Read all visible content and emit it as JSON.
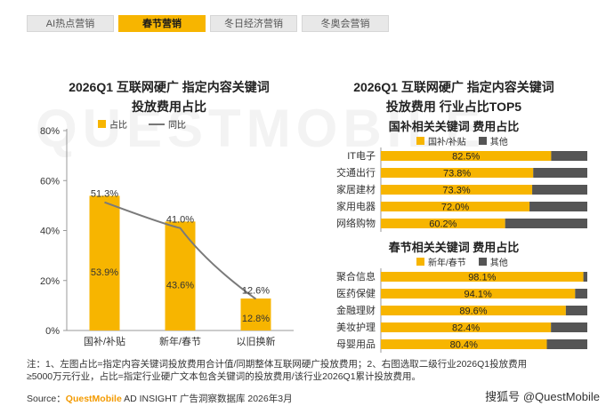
{
  "tabs": [
    "AI热点营销",
    "春节营销",
    "冬日经济营销",
    "冬奥会营销"
  ],
  "active_tab_index": 1,
  "watermark": "QUESTMOBILE",
  "left_chart_title_line1": "2026Q1 互联网硬广 指定内容关键词",
  "left_chart_title_line2": "投放费用占比",
  "right_chart_title_line1": "2026Q1 互联网硬广 指定内容关键词",
  "right_chart_title_line2": "投放费用 行业占比TOP5",
  "left_legend": {
    "bar": "占比",
    "line": "同比"
  },
  "top_panel": {
    "title": "国补相关关键词 费用占比",
    "legend_a": "国补/补贴",
    "legend_b": "其他"
  },
  "bottom_panel": {
    "title": "春节相关关键词 费用占比",
    "legend_a": "新年/春节",
    "legend_b": "其他"
  },
  "colors": {
    "accent": "#f7b500",
    "other": "#555555",
    "line": "#7a7a7a",
    "tab_inactive": "#e8e8e8"
  },
  "chart_data": [
    {
      "type": "bar",
      "title": "2026Q1 互联网硬广 指定内容关键词投放费用占比",
      "categories": [
        "国补/补贴",
        "新年/春节",
        "以旧换新"
      ],
      "series": [
        {
          "name": "占比",
          "type": "bar",
          "values": [
            53.9,
            43.6,
            12.8
          ],
          "labels": [
            "53.9%",
            "43.6%",
            "12.8%"
          ]
        },
        {
          "name": "同比",
          "type": "line",
          "values": [
            51.3,
            41.0,
            12.6
          ],
          "labels": [
            "51.3%",
            "41.0%",
            "12.6%"
          ]
        }
      ],
      "ylim": [
        0,
        80
      ],
      "yticks": [
        0,
        20,
        40,
        60,
        80
      ],
      "ytick_labels": [
        "0%",
        "20%",
        "40%",
        "60%",
        "80%"
      ],
      "xlabel": "",
      "ylabel": ""
    },
    {
      "type": "bar",
      "orientation": "horizontal",
      "stacked": true,
      "title": "国补相关关键词 费用占比",
      "categories": [
        "IT电子",
        "交通出行",
        "家居建材",
        "家用电器",
        "网络购物"
      ],
      "series": [
        {
          "name": "国补/补贴",
          "values": [
            82.5,
            73.8,
            73.3,
            72.0,
            60.2
          ],
          "labels": [
            "82.5%",
            "73.8%",
            "73.3%",
            "72.0%",
            "60.2%"
          ]
        },
        {
          "name": "其他",
          "values": [
            17.5,
            26.2,
            26.7,
            28.0,
            39.8
          ]
        }
      ],
      "xlim": [
        0,
        100
      ]
    },
    {
      "type": "bar",
      "orientation": "horizontal",
      "stacked": true,
      "title": "春节相关关键词 费用占比",
      "categories": [
        "聚合信息",
        "医药保健",
        "金融理财",
        "美妆护理",
        "母婴用品"
      ],
      "series": [
        {
          "name": "新年/春节",
          "values": [
            98.1,
            94.1,
            89.6,
            82.4,
            80.4
          ],
          "labels": [
            "98.1%",
            "94.1%",
            "89.6%",
            "82.4%",
            "80.4%"
          ]
        },
        {
          "name": "其他",
          "values": [
            1.9,
            5.9,
            10.4,
            17.6,
            19.6
          ]
        }
      ],
      "xlim": [
        0,
        100
      ]
    }
  ],
  "note_line1": "注：1、左图占比=指定内容关键词投放费用合计值/同期整体互联网硬广投放费用；2、右图选取二级行业2026Q1投放费用",
  "note_line2": "≥5000万元行业，占比=指定行业硬广文本包含关键词的投放费用/该行业2026Q1累计投放费用。",
  "source_prefix": "Source：",
  "source_brand": "QuestMobile",
  "source_rest": " AD INSIGHT 广告洞察数据库 2026年3月",
  "badge_prefix": "搜狐号",
  "badge": "@QuestMobile"
}
